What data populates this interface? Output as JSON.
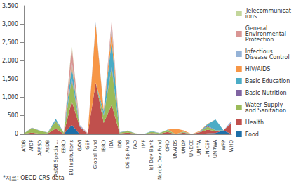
{
  "chart_data": {
    "type": "area",
    "stacked": true,
    "grid": false,
    "legend": "right",
    "categories": [
      "AfDB",
      "AfDF",
      "AFESD",
      "AsDB",
      "AsDB Special...",
      "EBRD",
      "EU Institutions",
      "GAVI",
      "GEF",
      "Global Fund",
      "IBRD",
      "IDA",
      "IDB",
      "IDB Sp.Fund",
      "IFAD",
      "IMF",
      "Isl.Dev Bank",
      "Nordic Dev.Fund",
      "OFID",
      "UNAIDS",
      "UNDP",
      "UNECE",
      "UNFPA",
      "UNICEF",
      "UNRWA",
      "WFP",
      "WHO"
    ],
    "ylim": [
      0,
      3500
    ],
    "yticks": [
      0,
      500,
      1000,
      1500,
      2000,
      2500,
      3000,
      3500
    ],
    "annotations": [
      "*자료: OECD CRS data"
    ],
    "series": [
      {
        "name": "Telecommunications",
        "color": "#c3d69b",
        "values": [
          0,
          0,
          0,
          0,
          0,
          0,
          50,
          0,
          0,
          0,
          0,
          0,
          0,
          0,
          0,
          0,
          0,
          0,
          0,
          0,
          0,
          0,
          0,
          0,
          0,
          0,
          0
        ]
      },
      {
        "name": "General Environmental Protection",
        "color": "#d99694",
        "values": [
          0,
          0,
          0,
          5,
          0,
          5,
          400,
          0,
          30,
          0,
          20,
          150,
          5,
          0,
          0,
          0,
          0,
          5,
          0,
          0,
          0,
          0,
          0,
          0,
          0,
          0,
          0
        ]
      },
      {
        "name": "Infectious Disease Control",
        "color": "#95b3d7",
        "values": [
          0,
          0,
          0,
          0,
          0,
          0,
          50,
          50,
          0,
          50,
          10,
          100,
          0,
          0,
          0,
          0,
          0,
          0,
          0,
          0,
          0,
          0,
          0,
          0,
          0,
          0,
          50
        ]
      },
      {
        "name": "HIV/AIDS",
        "color": "#f79646",
        "values": [
          0,
          5,
          0,
          0,
          0,
          0,
          100,
          0,
          0,
          1600,
          20,
          300,
          0,
          0,
          0,
          0,
          0,
          0,
          0,
          150,
          30,
          0,
          20,
          10,
          0,
          0,
          10
        ]
      },
      {
        "name": "Basic Education",
        "color": "#4bacc6",
        "values": [
          0,
          10,
          5,
          5,
          50,
          0,
          300,
          0,
          0,
          0,
          100,
          700,
          10,
          10,
          0,
          0,
          10,
          5,
          10,
          0,
          10,
          0,
          10,
          40,
          300,
          0,
          0
        ]
      },
      {
        "name": "Basic Nutrition",
        "color": "#8064a2",
        "values": [
          0,
          5,
          0,
          0,
          10,
          0,
          50,
          0,
          0,
          0,
          20,
          50,
          0,
          5,
          0,
          0,
          0,
          0,
          0,
          0,
          0,
          0,
          0,
          30,
          0,
          0,
          0
        ]
      },
      {
        "name": "Water Supply and Sanitation",
        "color": "#9bbb59",
        "values": [
          10,
          120,
          80,
          20,
          200,
          30,
          600,
          0,
          0,
          0,
          200,
          1000,
          20,
          40,
          5,
          0,
          40,
          15,
          50,
          0,
          20,
          0,
          0,
          80,
          20,
          0,
          0
        ]
      },
      {
        "name": "Health",
        "color": "#c0504d",
        "values": [
          10,
          40,
          10,
          20,
          150,
          10,
          650,
          200,
          0,
          1400,
          300,
          800,
          20,
          40,
          5,
          0,
          30,
          10,
          60,
          0,
          40,
          0,
          50,
          100,
          50,
          0,
          300
        ]
      },
      {
        "name": "Food",
        "color": "#1f6fa8",
        "values": [
          0,
          0,
          0,
          0,
          0,
          0,
          250,
          0,
          0,
          0,
          0,
          0,
          0,
          0,
          10,
          0,
          0,
          0,
          0,
          0,
          0,
          0,
          0,
          20,
          30,
          100,
          0
        ]
      }
    ]
  }
}
